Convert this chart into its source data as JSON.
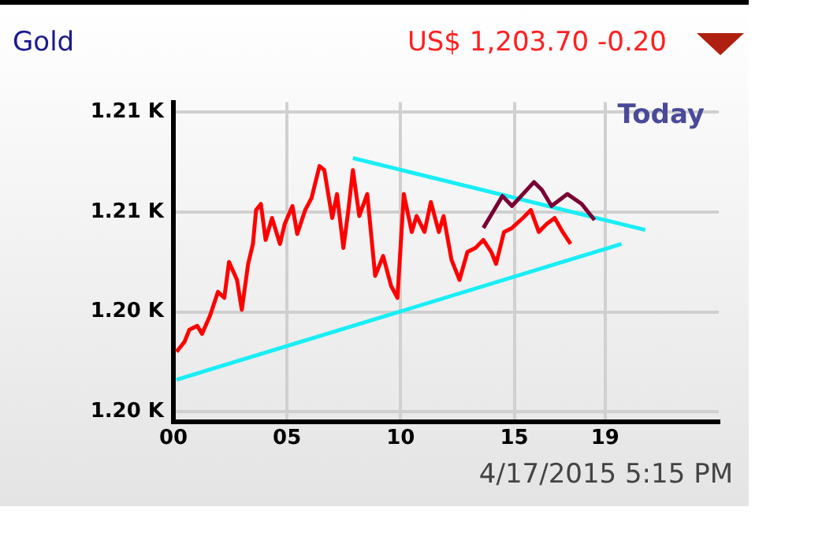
{
  "chart_data": {
    "type": "line",
    "title": "Gold",
    "subtitle": "US$ 1,203.70 -0.20",
    "annotations": [
      "Today",
      "4/17/2015 5:15 PM"
    ],
    "xlim": [
      0,
      24
    ],
    "xticks": [
      {
        "value": 0,
        "label": "00"
      },
      {
        "value": 5,
        "label": "05"
      },
      10,
      15,
      19
    ],
    "ylim": [
      1194.5,
      1210.5
    ],
    "yticks": [
      {
        "value": 1195,
        "label": "1.20 K"
      },
      {
        "value": 1200,
        "label": "1.20 K"
      },
      {
        "value": 1205,
        "label": "1.21 K"
      },
      {
        "value": 1210,
        "label": "1.21 K"
      }
    ],
    "grid": true,
    "legend": false,
    "marker": "none",
    "line_style": "solid",
    "series": [
      {
        "color": "#ff0000",
        "x": [
          0.14,
          0.49,
          0.7,
          1.05,
          1.26,
          1.61,
          1.96,
          2.24,
          2.45,
          2.8,
          3.01,
          3.29,
          3.5,
          3.64,
          3.85,
          4.06,
          4.34,
          4.69,
          4.9,
          5.24,
          5.45,
          5.8,
          6.08,
          6.43,
          6.64,
          6.99,
          7.2,
          7.48,
          7.69,
          7.9,
          8.18,
          8.53,
          8.88,
          9.23,
          9.58,
          9.86,
          10.14,
          10.49,
          10.7,
          11.05,
          11.33,
          11.68,
          11.89,
          12.24,
          12.59,
          12.94,
          13.29,
          13.64,
          13.99,
          14.2,
          14.55,
          14.9,
          15.38,
          15.73,
          16.08,
          16.43,
          16.78,
          17.13,
          17.48
        ],
        "values": [
          1198.0,
          1198.5,
          1199.1,
          1199.3,
          1198.9,
          1199.8,
          1201.0,
          1200.7,
          1202.5,
          1201.6,
          1200.1,
          1202.4,
          1203.4,
          1205.1,
          1205.4,
          1203.6,
          1204.7,
          1203.4,
          1204.4,
          1205.3,
          1203.9,
          1205.1,
          1205.7,
          1207.3,
          1207.1,
          1204.7,
          1205.9,
          1203.2,
          1205.0,
          1207.1,
          1204.8,
          1205.9,
          1201.8,
          1202.8,
          1201.3,
          1200.7,
          1205.9,
          1204.0,
          1204.8,
          1204.0,
          1205.5,
          1204.0,
          1204.8,
          1202.6,
          1201.6,
          1203.0,
          1203.2,
          1203.6,
          1203.0,
          1202.4,
          1204.0,
          1204.2,
          1204.7,
          1205.1,
          1204.0,
          1204.4,
          1204.7,
          1204.0,
          1203.4
        ]
      },
      {
        "color": "#7b0033",
        "x": [
          13.64,
          14.48,
          14.9,
          15.87,
          16.22,
          16.64,
          17.34,
          17.97,
          18.53
        ],
        "values": [
          1204.2,
          1205.8,
          1205.3,
          1206.5,
          1206.1,
          1205.3,
          1205.9,
          1205.4,
          1204.6
        ]
      },
      {
        "color": "#19eef5",
        "x": [
          7.9,
          20.77
        ],
        "values": [
          1207.7,
          1204.1
        ]
      },
      {
        "color": "#19eef5",
        "x": [
          0.14,
          19.72
        ],
        "values": [
          1196.6,
          1203.4
        ]
      }
    ]
  }
}
